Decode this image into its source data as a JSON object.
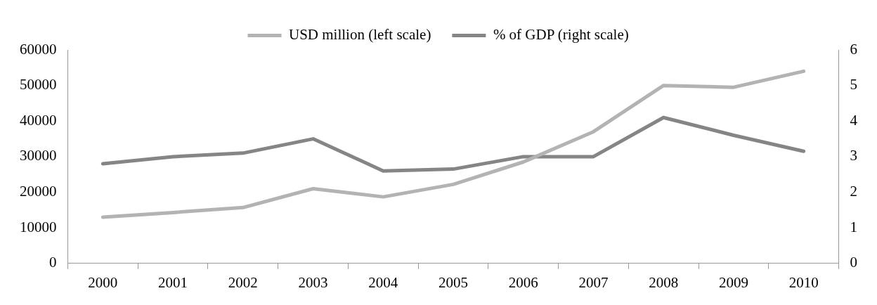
{
  "chart_data": {
    "type": "line",
    "categories": [
      "2000",
      "2001",
      "2002",
      "2003",
      "2004",
      "2005",
      "2006",
      "2007",
      "2008",
      "2009",
      "2010"
    ],
    "series": [
      {
        "name": "USD million (left scale)",
        "color": "#b3b3b3",
        "values": [
          13000,
          14300,
          15700,
          21000,
          18700,
          22200,
          28500,
          37000,
          50000,
          49500,
          54000
        ]
      },
      {
        "name": "% of GDP (right scale)",
        "color": "#858585",
        "axis": "y2",
        "values": [
          2.8,
          3.0,
          3.1,
          3.5,
          2.6,
          2.65,
          3.0,
          3.0,
          4.1,
          3.6,
          3.15
        ]
      }
    ],
    "ylim": [
      0,
      60000
    ],
    "yticks": [
      0,
      10000,
      20000,
      30000,
      40000,
      50000,
      60000
    ],
    "y2lim": [
      0,
      6
    ],
    "y2ticks": [
      0,
      1,
      2,
      3,
      4,
      5,
      6
    ],
    "legend": "top",
    "grid": false,
    "marker": "none",
    "line_style": "solid"
  }
}
